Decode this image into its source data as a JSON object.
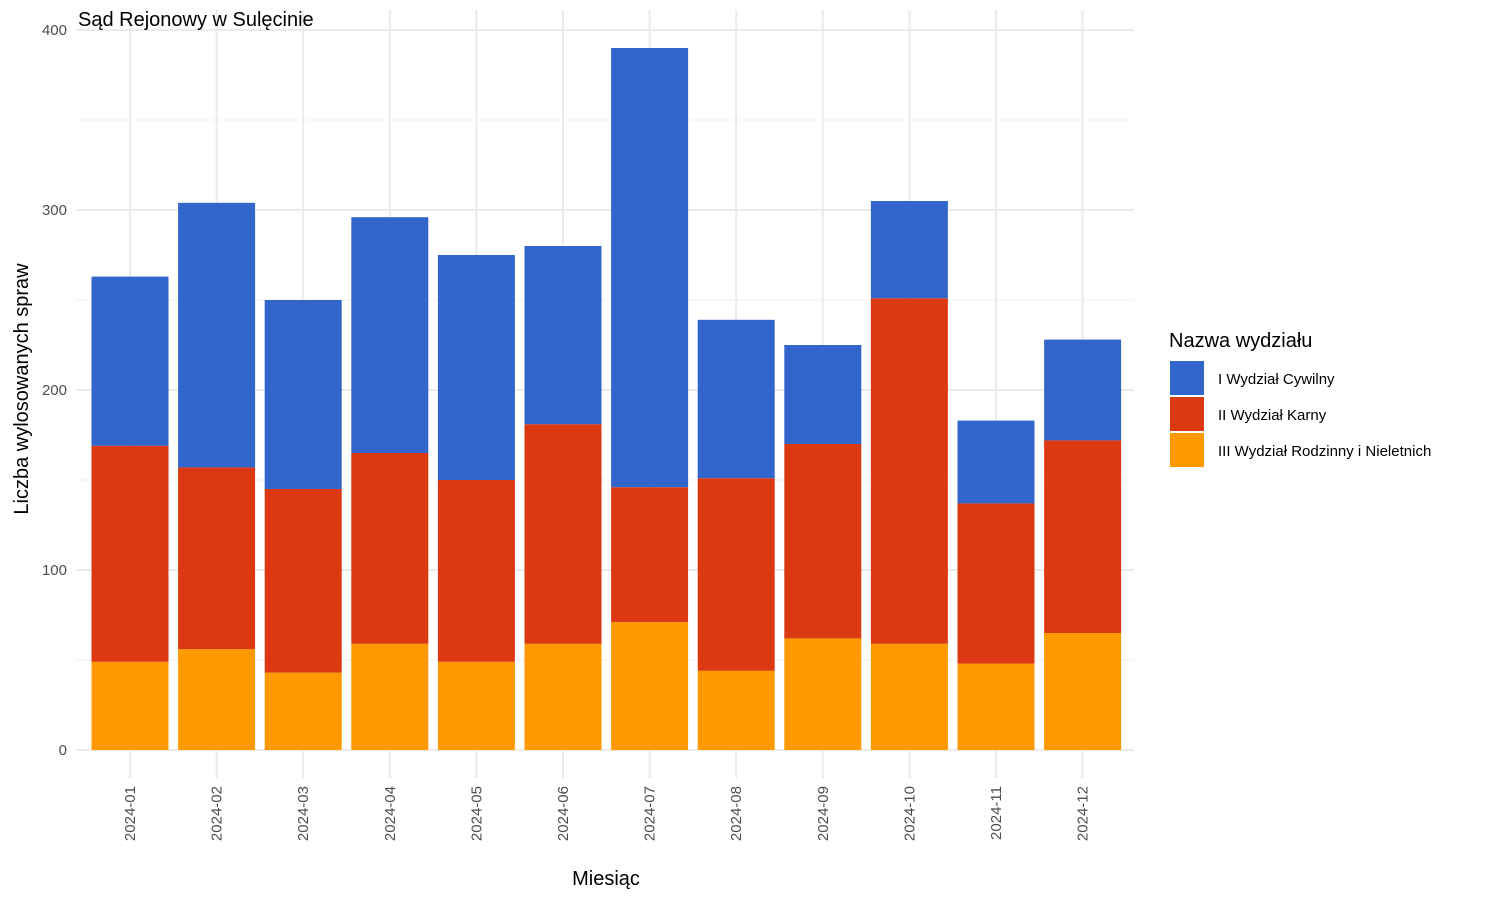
{
  "chart_data": {
    "type": "bar",
    "stacked": true,
    "title": "Sąd Rejonowy w Sulęcinie",
    "xlabel": "Miesiąc",
    "ylabel": "Liczba wylosowanych spraw",
    "ylim": [
      0,
      400
    ],
    "yticks": [
      0,
      100,
      200,
      300,
      400
    ],
    "grid": true,
    "legend_position": "right",
    "legend_title": "Nazwa wydziału",
    "categories": [
      "2024-01",
      "2024-02",
      "2024-03",
      "2024-04",
      "2024-05",
      "2024-06",
      "2024-07",
      "2024-08",
      "2024-09",
      "2024-10",
      "2024-11",
      "2024-12"
    ],
    "series": [
      {
        "name": "I Wydział Cywilny",
        "color": "#3366CC",
        "values": [
          94,
          147,
          105,
          131,
          125,
          99,
          244,
          88,
          55,
          54,
          46,
          56
        ]
      },
      {
        "name": "II Wydział Karny",
        "color": "#DC3912",
        "values": [
          120,
          101,
          102,
          106,
          101,
          122,
          75,
          107,
          108,
          192,
          89,
          107
        ]
      },
      {
        "name": "III Wydział Rodzinny i Nieletnich",
        "color": "#FF9900",
        "values": [
          49,
          56,
          43,
          59,
          49,
          59,
          71,
          44,
          62,
          59,
          48,
          65
        ]
      }
    ]
  }
}
